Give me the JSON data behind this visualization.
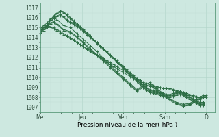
{
  "background_color": "#cde8e0",
  "plot_bg_color": "#cde8e0",
  "grid_major_color": "#b0d4c8",
  "grid_minor_color": "#c0dcd4",
  "line_color": "#2d6e45",
  "ylabel_ticks": [
    1007,
    1008,
    1009,
    1010,
    1011,
    1012,
    1013,
    1014,
    1015,
    1016,
    1017
  ],
  "ylim": [
    1006.5,
    1017.5
  ],
  "xlabel": "Pression niveau de la mer( hPa )",
  "day_labels": [
    "Mer",
    "Jeu",
    "Ven",
    "Sam",
    "D"
  ],
  "day_positions": [
    0.0,
    0.25,
    0.5,
    0.75,
    1.0
  ],
  "xlim": [
    0.0,
    1.05
  ],
  "line_width": 0.7,
  "marker_size": 2.5,
  "tick_fontsize": 5.5,
  "label_fontsize": 6.5,
  "series": [
    {
      "x": [
        0.0,
        0.02,
        0.04,
        0.06,
        0.08,
        0.1,
        0.12,
        0.14,
        0.16,
        0.18,
        0.2,
        0.22,
        0.24,
        0.26,
        0.28,
        0.3,
        0.32,
        0.34,
        0.36,
        0.38,
        0.4,
        0.42,
        0.44,
        0.46,
        0.48,
        0.5,
        0.52,
        0.54,
        0.56,
        0.58,
        0.6,
        0.62,
        0.64,
        0.66,
        0.68,
        0.7,
        0.72,
        0.74,
        0.76,
        0.78,
        0.8,
        0.82,
        0.84,
        0.86,
        0.88,
        0.9,
        0.92,
        0.94,
        0.96,
        0.98
      ],
      "y": [
        1014.8,
        1015.0,
        1015.1,
        1015.0,
        1014.9,
        1014.7,
        1014.5,
        1014.3,
        1014.1,
        1013.9,
        1013.7,
        1013.5,
        1013.3,
        1013.1,
        1012.9,
        1012.7,
        1012.5,
        1012.3,
        1012.1,
        1011.9,
        1011.7,
        1011.5,
        1011.3,
        1011.1,
        1010.9,
        1010.7,
        1010.5,
        1010.3,
        1010.1,
        1009.9,
        1009.7,
        1009.5,
        1009.4,
        1009.3,
        1009.2,
        1009.1,
        1009.0,
        1008.9,
        1008.9,
        1008.8,
        1008.7,
        1008.6,
        1008.5,
        1008.4,
        1008.3,
        1008.2,
        1008.1,
        1008.0,
        1008.0,
        1008.0
      ]
    },
    {
      "x": [
        0.0,
        0.02,
        0.04,
        0.06,
        0.08,
        0.1,
        0.12,
        0.14,
        0.16,
        0.18,
        0.2,
        0.22,
        0.24,
        0.26,
        0.28,
        0.3,
        0.32,
        0.34,
        0.36,
        0.38,
        0.4,
        0.42,
        0.44,
        0.46,
        0.48,
        0.5,
        0.52,
        0.54,
        0.56,
        0.58,
        0.6,
        0.62,
        0.64,
        0.66,
        0.68,
        0.7,
        0.72,
        0.74,
        0.76,
        0.78,
        0.8,
        0.82,
        0.84,
        0.86,
        0.88,
        0.9,
        0.92,
        0.94,
        0.96,
        0.98
      ],
      "y": [
        1014.7,
        1015.0,
        1015.2,
        1015.1,
        1015.0,
        1014.8,
        1014.6,
        1014.4,
        1014.2,
        1014.0,
        1013.8,
        1013.5,
        1013.3,
        1013.1,
        1012.8,
        1012.6,
        1012.4,
        1012.2,
        1012.0,
        1011.8,
        1011.5,
        1011.3,
        1011.1,
        1010.9,
        1010.7,
        1010.5,
        1010.3,
        1010.1,
        1009.9,
        1009.7,
        1009.5,
        1009.3,
        1009.2,
        1009.1,
        1009.1,
        1009.0,
        1009.0,
        1008.9,
        1008.9,
        1008.9,
        1008.8,
        1008.7,
        1008.6,
        1008.5,
        1008.4,
        1008.3,
        1008.2,
        1008.1,
        1008.0,
        1008.0
      ]
    },
    {
      "x": [
        0.0,
        0.02,
        0.04,
        0.06,
        0.08,
        0.1,
        0.14,
        0.18,
        0.22,
        0.26,
        0.3,
        0.34,
        0.38,
        0.42,
        0.46,
        0.5,
        0.54,
        0.58,
        0.62,
        0.66,
        0.7,
        0.74,
        0.78,
        0.82,
        0.86,
        0.9,
        0.94,
        0.96,
        0.98,
        1.0
      ],
      "y": [
        1014.5,
        1014.8,
        1015.0,
        1015.4,
        1015.5,
        1015.3,
        1014.7,
        1014.5,
        1014.0,
        1013.4,
        1012.8,
        1012.2,
        1011.6,
        1011.0,
        1010.4,
        1009.8,
        1009.2,
        1008.6,
        1009.0,
        1009.2,
        1008.7,
        1008.2,
        1007.7,
        1007.3,
        1007.1,
        1007.2,
        1007.6,
        1007.8,
        1008.0,
        1008.0
      ]
    },
    {
      "x": [
        0.0,
        0.02,
        0.04,
        0.06,
        0.08,
        0.1,
        0.14,
        0.18,
        0.22,
        0.26,
        0.3,
        0.34,
        0.38,
        0.42,
        0.46,
        0.5,
        0.54,
        0.58,
        0.62,
        0.66,
        0.7,
        0.74,
        0.78,
        0.82,
        0.86,
        0.9,
        0.94,
        0.96,
        0.98,
        1.0
      ],
      "y": [
        1014.6,
        1014.9,
        1015.1,
        1015.5,
        1015.6,
        1015.4,
        1014.8,
        1014.6,
        1014.1,
        1013.5,
        1012.9,
        1012.3,
        1011.7,
        1011.1,
        1010.5,
        1009.9,
        1009.3,
        1008.7,
        1009.1,
        1009.3,
        1008.8,
        1008.3,
        1007.8,
        1007.4,
        1007.2,
        1007.3,
        1007.7,
        1007.9,
        1008.1,
        1008.1
      ]
    },
    {
      "x": [
        0.0,
        0.02,
        0.04,
        0.06,
        0.08,
        0.1,
        0.14,
        0.18,
        0.22,
        0.26,
        0.3,
        0.34,
        0.38,
        0.42,
        0.46,
        0.5,
        0.54,
        0.58,
        0.62,
        0.66,
        0.7,
        0.74,
        0.78,
        0.82,
        0.86,
        0.9,
        0.94,
        0.96,
        0.98,
        1.0
      ],
      "y": [
        1015.0,
        1015.2,
        1015.5,
        1015.9,
        1016.0,
        1015.8,
        1015.2,
        1015.0,
        1014.4,
        1013.8,
        1013.2,
        1012.6,
        1011.9,
        1011.3,
        1010.6,
        1010.0,
        1009.4,
        1008.8,
        1009.2,
        1009.5,
        1008.9,
        1008.4,
        1007.9,
        1007.5,
        1007.3,
        1007.4,
        1007.8,
        1008.0,
        1008.2,
        1008.2
      ]
    },
    {
      "x": [
        0.0,
        0.02,
        0.04,
        0.06,
        0.08,
        0.1,
        0.12,
        0.14,
        0.16,
        0.18,
        0.2,
        0.22,
        0.24,
        0.26,
        0.28,
        0.3,
        0.32,
        0.34,
        0.36,
        0.38,
        0.4,
        0.42,
        0.44,
        0.46,
        0.48,
        0.5,
        0.52,
        0.54,
        0.56,
        0.58,
        0.6,
        0.62,
        0.64,
        0.66,
        0.68,
        0.7,
        0.72,
        0.74,
        0.76,
        0.78,
        0.8,
        0.82,
        0.84,
        0.86,
        0.88,
        0.9,
        0.92,
        0.94,
        0.96,
        0.98
      ],
      "y": [
        1014.9,
        1015.1,
        1015.3,
        1015.8,
        1016.0,
        1016.2,
        1016.3,
        1016.1,
        1015.8,
        1015.6,
        1015.4,
        1015.2,
        1015.0,
        1014.7,
        1014.4,
        1014.1,
        1013.8,
        1013.5,
        1013.2,
        1012.9,
        1012.6,
        1012.3,
        1012.0,
        1011.7,
        1011.4,
        1011.1,
        1010.8,
        1010.5,
        1010.2,
        1009.9,
        1009.6,
        1009.3,
        1009.0,
        1008.8,
        1008.7,
        1008.6,
        1008.5,
        1008.4,
        1008.3,
        1008.3,
        1008.4,
        1008.5,
        1008.6,
        1008.5,
        1008.3,
        1008.1,
        1007.9,
        1007.7,
        1007.5,
        1007.5
      ]
    },
    {
      "x": [
        0.0,
        0.02,
        0.04,
        0.06,
        0.08,
        0.1,
        0.12,
        0.14,
        0.16,
        0.18,
        0.2,
        0.22,
        0.24,
        0.26,
        0.28,
        0.3,
        0.32,
        0.34,
        0.36,
        0.38,
        0.4,
        0.42,
        0.44,
        0.46,
        0.48,
        0.5,
        0.52,
        0.54,
        0.56,
        0.58,
        0.6,
        0.62,
        0.64,
        0.66,
        0.68,
        0.7,
        0.72,
        0.74,
        0.76,
        0.78,
        0.8,
        0.82,
        0.84,
        0.86,
        0.88,
        0.9,
        0.92,
        0.94,
        0.96,
        0.98
      ],
      "y": [
        1014.8,
        1015.0,
        1015.2,
        1015.7,
        1015.9,
        1016.1,
        1016.2,
        1016.0,
        1015.7,
        1015.5,
        1015.3,
        1015.1,
        1014.9,
        1014.6,
        1014.3,
        1014.0,
        1013.7,
        1013.4,
        1013.1,
        1012.8,
        1012.5,
        1012.2,
        1011.9,
        1011.6,
        1011.3,
        1011.0,
        1010.7,
        1010.4,
        1010.1,
        1009.8,
        1009.5,
        1009.2,
        1008.9,
        1008.7,
        1008.6,
        1008.5,
        1008.4,
        1008.3,
        1008.2,
        1008.2,
        1008.3,
        1008.4,
        1008.5,
        1008.4,
        1008.2,
        1008.0,
        1007.8,
        1007.6,
        1007.4,
        1007.4
      ]
    },
    {
      "x": [
        0.0,
        0.02,
        0.04,
        0.06,
        0.08,
        0.1,
        0.12,
        0.14,
        0.16,
        0.18,
        0.2,
        0.22,
        0.24,
        0.26,
        0.28,
        0.3,
        0.32,
        0.34,
        0.36,
        0.38,
        0.4,
        0.42,
        0.44,
        0.46,
        0.48,
        0.5,
        0.52,
        0.54,
        0.56,
        0.58,
        0.6,
        0.62,
        0.64,
        0.66,
        0.68,
        0.7,
        0.72,
        0.74,
        0.76,
        0.78,
        0.8,
        0.82,
        0.84,
        0.86,
        0.88,
        0.9,
        0.92,
        0.94,
        0.96,
        0.98
      ],
      "y": [
        1014.6,
        1014.9,
        1015.2,
        1015.8,
        1016.1,
        1016.4,
        1016.6,
        1016.5,
        1016.2,
        1015.9,
        1015.6,
        1015.3,
        1015.0,
        1014.7,
        1014.4,
        1014.1,
        1013.8,
        1013.5,
        1013.2,
        1012.9,
        1012.5,
        1012.2,
        1011.9,
        1011.6,
        1011.3,
        1011.0,
        1010.6,
        1010.3,
        1010.0,
        1009.7,
        1009.4,
        1009.1,
        1008.8,
        1008.6,
        1008.5,
        1008.4,
        1008.3,
        1008.2,
        1008.1,
        1008.1,
        1008.2,
        1008.3,
        1008.4,
        1008.3,
        1008.1,
        1007.9,
        1007.7,
        1007.5,
        1007.3,
        1007.3
      ]
    },
    {
      "x": [
        0.0,
        0.02,
        0.04,
        0.06,
        0.08,
        0.1,
        0.12,
        0.14,
        0.16,
        0.18,
        0.2,
        0.22,
        0.24,
        0.26,
        0.28,
        0.3,
        0.32,
        0.34,
        0.36,
        0.38,
        0.4,
        0.42,
        0.44,
        0.46,
        0.48,
        0.5,
        0.52,
        0.54,
        0.56,
        0.58,
        0.6,
        0.62,
        0.64,
        0.66,
        0.68,
        0.7,
        0.72,
        0.74,
        0.76,
        0.78,
        0.8,
        0.82,
        0.84,
        0.86,
        0.88,
        0.9,
        0.92,
        0.94,
        0.96,
        0.98
      ],
      "y": [
        1014.4,
        1014.7,
        1015.1,
        1015.8,
        1016.2,
        1016.5,
        1016.7,
        1016.6,
        1016.3,
        1016.0,
        1015.7,
        1015.4,
        1015.1,
        1014.8,
        1014.5,
        1014.2,
        1013.8,
        1013.5,
        1013.2,
        1012.9,
        1012.5,
        1012.2,
        1011.9,
        1011.5,
        1011.2,
        1010.9,
        1010.5,
        1010.2,
        1009.9,
        1009.6,
        1009.3,
        1009.0,
        1008.7,
        1008.5,
        1008.4,
        1008.3,
        1008.2,
        1008.1,
        1008.0,
        1008.0,
        1008.1,
        1008.2,
        1008.3,
        1008.2,
        1008.0,
        1007.8,
        1007.6,
        1007.4,
        1007.2,
        1007.2
      ]
    }
  ]
}
